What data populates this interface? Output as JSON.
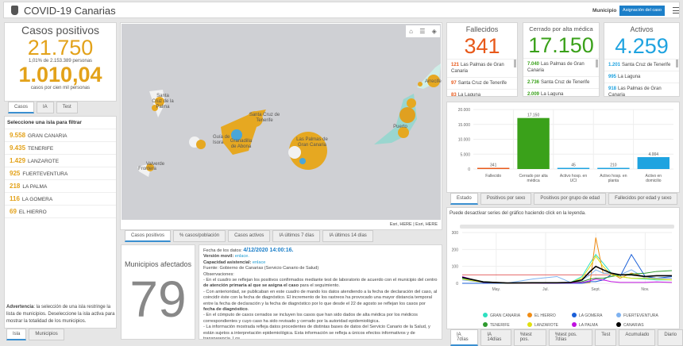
{
  "header": {
    "title": "COVID-19 Canarias",
    "municipio_label": "Municipio",
    "assign_button": "Asignación del caso",
    "menu_icon": "hamburger-icon",
    "logo_icon": "coat-of-arms-icon"
  },
  "casos": {
    "title": "Casos positivos",
    "total": "21.750",
    "pct": "1,01% de 2.153.389 personas",
    "rate": "1.010,04",
    "rate_label": "casos por cien mil personas",
    "tabs": [
      "Casos",
      "IA",
      "Test"
    ],
    "color": "#e3a21a"
  },
  "islas": {
    "heading": "Seleccione una isla para filtrar",
    "items": [
      {
        "n": "9.558",
        "name": "GRAN CANARIA"
      },
      {
        "n": "9.435",
        "name": "TENERIFE"
      },
      {
        "n": "1.429",
        "name": "LANZAROTE"
      },
      {
        "n": "925",
        "name": "FUERTEVENTURA"
      },
      {
        "n": "218",
        "name": "LA PALMA"
      },
      {
        "n": "116",
        "name": "LA GOMERA"
      },
      {
        "n": "69",
        "name": "EL HIERRO"
      }
    ],
    "warning_bold": "Advertencia",
    "warning": ": la selección de una isla restringe la lista de municipios. Deseleccione la isla activa para mostrar la totalidad de los municipios.",
    "tabs": [
      "Isla",
      "Municipios"
    ]
  },
  "map": {
    "labels": [
      "Santa Cruz de la Palma",
      "Santa Cruz de Tenerife",
      "Guía de Isora",
      "Granadilla de Abona",
      "Las Palmas de Gran Canaria",
      "Valverde",
      "Frontera",
      "Arrecife",
      "Puerto"
    ],
    "attribution": "Esri, HERE | Esri, HERE",
    "tools": [
      "home-icon",
      "list-icon",
      "layers-icon"
    ],
    "tabs": [
      "Casos positivos",
      "% casos/población",
      "Casos activos",
      "IA últimos 7 días",
      "IA últimos 14 días"
    ]
  },
  "municipios": {
    "title": "Municipios afectados",
    "value": "79"
  },
  "info": {
    "fecha_label": "Fecha de los datos: ",
    "fecha": "4/12/2020 14:00:16.",
    "movil_label": "Versión movil: ",
    "movil_link": "enlace.",
    "cap_label": "Capacidad asistencial: ",
    "cap_link": "enlace",
    "fuente": "Fuente: Gobierno de Canarias (Servicio Canario de Salud)",
    "obs": "Observaciones:",
    "p1a": "- En el cuadro se reflejan los positivos confirmados mediante test de laboratorio de acuerdo con el municipio del centro ",
    "p1b": "de atención primaria al que se asigna el caso",
    "p1c": " para el seguimiento.",
    "p2a": "- Con anterioridad, se publicaban en este cuadro de mando los datos atendiendo a la fecha de declaración del caso, al coincidir éste con la fecha de diagnóstico. El incremento de los rastreos ha provocado una mayor distancia temporal entre la fecha de declaración y la fecha de diagnóstico por lo que desde el 22 de agosto se reflejan los casos por ",
    "p2b": "fecha de diagnóstico",
    "p2c": ".",
    "p3": "- En el cómputo de casos cerrados se incluyen los casos que han sido dados de alta médica por los médicos correspondientes y cuyo caso ha sido revisado y cerrado por la autoridad epidemiológica.",
    "p4": "- La información mostrada refleja datos procedentes de distintas bases de datos del Servicio Canario de la Salud, y están sujetos a interpretación epidemiológica. Esta información se refleja a únicos efectos informativos y de transparencia. Los"
  },
  "fallecidos": {
    "title": "Fallecidos",
    "value": "341",
    "color": "#e8591a",
    "items": [
      {
        "n": "121",
        "name": "Las Palmas de Gran Canaria"
      },
      {
        "n": "97",
        "name": "Santa Cruz de Tenerife"
      },
      {
        "n": "83",
        "name": "La Laguna"
      }
    ]
  },
  "cerrado": {
    "title": "Cerrado por alta médica",
    "value": "17.150",
    "color": "#3aa11a",
    "items": [
      {
        "n": "7.040",
        "name": "Las Palmas de Gran Canaria"
      },
      {
        "n": "2.736",
        "name": "Santa Cruz de Tenerife"
      },
      {
        "n": "2.009",
        "name": "La Laguna"
      }
    ]
  },
  "activos": {
    "title": "Activos",
    "value": "4.259",
    "color": "#1fa3e0",
    "items": [
      {
        "n": "1.201",
        "name": "Santa Cruz de Tenerife"
      },
      {
        "n": "995",
        "name": "La Laguna"
      },
      {
        "n": "918",
        "name": "Las Palmas de Gran Canaria"
      }
    ]
  },
  "bar_tabs": [
    "Estado",
    "Positivos por sexo",
    "Positivos por grupo de edad",
    "Fallecidos por edad y sexo"
  ],
  "line_note": "Puede desactivar series del gráfico haciendo click en la leyenda.",
  "line_tabs": [
    "IA 7días",
    "IA 14días",
    "%test pos.",
    "%test pos. 7días",
    "Test",
    "Acumulado",
    "Diario"
  ],
  "chart_data": [
    {
      "type": "bar",
      "categories": [
        "Fallecido",
        "Cerrado por alta médica",
        "Activo hosp. en UCI",
        "Activo hosp. en planta",
        "Activo en domicilio"
      ],
      "values": [
        341,
        17150,
        45,
        210,
        4004
      ],
      "data_labels": [
        "341",
        "17.150",
        "45",
        "210",
        "4.004"
      ],
      "colors": [
        "#e8591a",
        "#3aa11a",
        "#1fa3e0",
        "#1fa3e0",
        "#1fa3e0"
      ],
      "ylim": [
        0,
        20000
      ],
      "yticks": [
        "0",
        "5.000",
        "10.000",
        "15.000",
        "20.000"
      ],
      "grid": true
    },
    {
      "type": "line",
      "x": [
        "2020-03-20",
        "2020-04-15",
        "2020-05-15",
        "2020-06-15",
        "2020-07-15",
        "2020-08-01",
        "2020-08-15",
        "2020-08-25",
        "2020-09-01",
        "2020-09-10",
        "2020-09-20",
        "2020-10-01",
        "2020-10-15",
        "2020-11-01",
        "2020-11-15",
        "2020-12-04"
      ],
      "xticks": [
        "May.",
        "Jul.",
        "Sept.",
        "Nov."
      ],
      "ylim": [
        0,
        300
      ],
      "yticks": [
        "0",
        "100",
        "200",
        "300"
      ],
      "threshold": {
        "value": 50,
        "color": "#e05050"
      },
      "legend": "bottom",
      "grid": true,
      "series": [
        {
          "name": "GRAN CANARIA",
          "color": "#2ee0c0",
          "values": [
            30,
            8,
            2,
            1,
            3,
            5,
            40,
            120,
            170,
            120,
            60,
            40,
            30,
            25,
            20,
            20
          ]
        },
        {
          "name": "EL HIERRO",
          "color": "#f08c14",
          "values": [
            0,
            0,
            0,
            0,
            0,
            0,
            0,
            5,
            270,
            60,
            60,
            30,
            60,
            40,
            30,
            30
          ]
        },
        {
          "name": "LA GOMERA",
          "color": "#1a5fd8",
          "values": [
            0,
            0,
            0,
            0,
            0,
            0,
            0,
            10,
            10,
            20,
            50,
            40,
            170,
            40,
            30,
            40
          ]
        },
        {
          "name": "FUERTEVENTURA",
          "color": "#7fb2f0",
          "values": [
            20,
            5,
            2,
            25,
            40,
            5,
            20,
            50,
            80,
            60,
            60,
            50,
            80,
            30,
            30,
            30
          ]
        },
        {
          "name": "TENERIFE",
          "color": "#2e9a2e",
          "values": [
            35,
            10,
            2,
            1,
            3,
            5,
            10,
            25,
            30,
            30,
            40,
            50,
            55,
            60,
            70,
            75
          ]
        },
        {
          "name": "LANZAROTE",
          "color": "#e0e010",
          "values": [
            25,
            5,
            1,
            1,
            3,
            5,
            30,
            100,
            160,
            100,
            50,
            40,
            30,
            30,
            25,
            20
          ]
        },
        {
          "name": "LA PALMA",
          "color": "#c010e0",
          "values": [
            40,
            5,
            2,
            1,
            1,
            2,
            5,
            15,
            25,
            20,
            10,
            5,
            5,
            5,
            8,
            5
          ]
        },
        {
          "name": "CANARIAS",
          "color": "#000000",
          "values": [
            35,
            8,
            2,
            3,
            3,
            5,
            20,
            70,
            100,
            80,
            60,
            50,
            50,
            40,
            45,
            45
          ]
        }
      ]
    }
  ]
}
